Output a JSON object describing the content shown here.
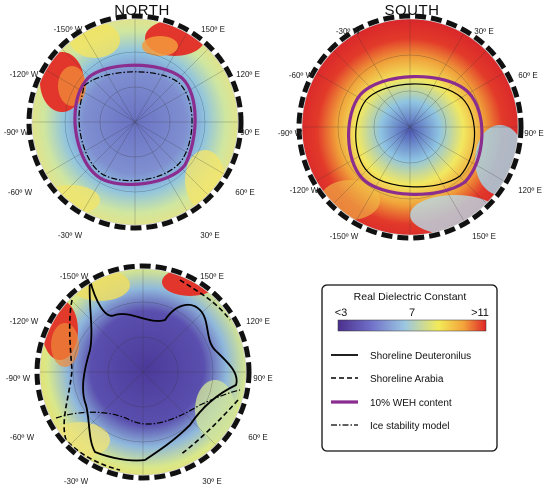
{
  "panels": {
    "north": {
      "title": "NORTH",
      "labels": [
        "-150º W",
        "150º E",
        "-120º W",
        "120º E",
        "-90º W",
        "90º E",
        "-60º W",
        "60º E",
        "-30º W",
        "30º E"
      ]
    },
    "south": {
      "title": "SOUTH",
      "labels": [
        "-30º W",
        "30º E",
        "-60º W",
        "60º E",
        "-90º W",
        "90º E",
        "-120º W",
        "120º E",
        "-150º W",
        "150º E"
      ]
    },
    "bottom": {
      "labels": [
        "-150º W",
        "150º E",
        "-120º W",
        "120º E",
        "-90º W",
        "90º E",
        "-60º W",
        "60º E",
        "-30º W",
        "30º E"
      ]
    }
  },
  "legend": {
    "title": "Real Dielectric Constant",
    "scale_min_label": "<3",
    "scale_mid_label": "7",
    "scale_max_label": ">11",
    "colorbar": [
      "#4b2f8c",
      "#6f6fc8",
      "#9bc6e2",
      "#f3ea58",
      "#f3a23a",
      "#e0262a"
    ],
    "items": [
      {
        "label": "Shoreline Deuteronilus",
        "style": "solid",
        "color": "#000000"
      },
      {
        "label": "Shoreline Arabia",
        "style": "dashed",
        "color": "#000000"
      },
      {
        "label": "10%  WEH content",
        "style": "solid-thick",
        "color": "#8b2d8f"
      },
      {
        "label": "Ice stability model",
        "style": "dashdot",
        "color": "#000000"
      }
    ]
  }
}
